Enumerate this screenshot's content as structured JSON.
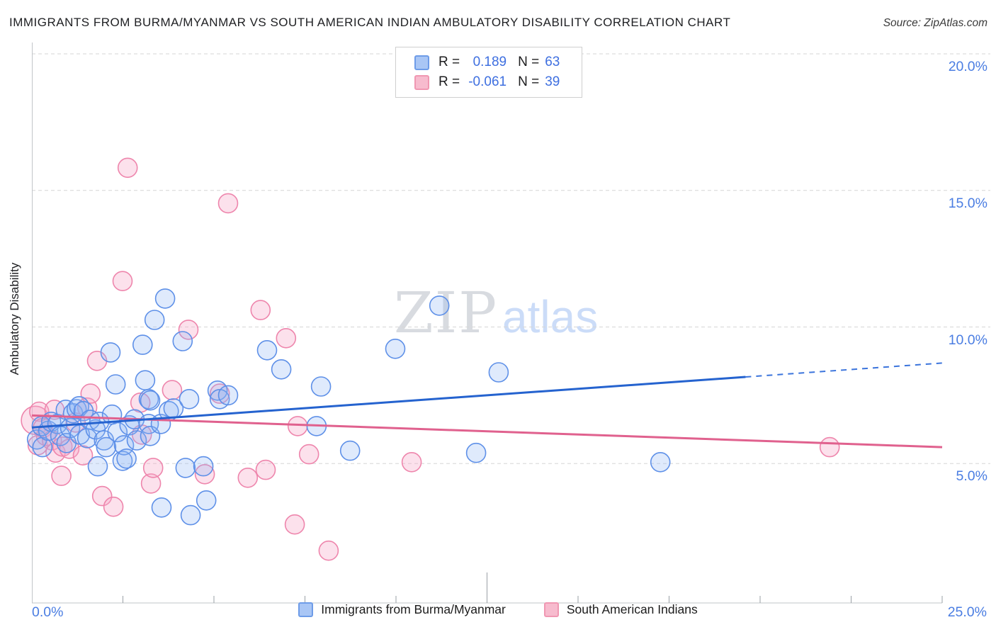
{
  "title": "IMMIGRANTS FROM BURMA/MYANMAR VS SOUTH AMERICAN INDIAN AMBULATORY DISABILITY CORRELATION CHART",
  "source": "Source: ZipAtlas.com",
  "watermark": {
    "zip": "ZIP",
    "atlas": "atlas"
  },
  "stats_legend": {
    "rows": [
      {
        "series": "Immigrants from Burma/Myanmar",
        "r_label": "R =",
        "r_value": "0.189",
        "n_label": "N =",
        "n_value": "63"
      },
      {
        "series": "South American Indians",
        "r_label": "R =",
        "r_value": "-0.061",
        "n_label": "N =",
        "n_value": "39"
      }
    ]
  },
  "axes": {
    "y_label": "Ambulatory Disability",
    "y_ticks": [
      {
        "value": 20,
        "label": "20.0%"
      },
      {
        "value": 15,
        "label": "15.0%"
      },
      {
        "value": 10,
        "label": "10.0%"
      },
      {
        "value": 5,
        "label": "5.0%"
      }
    ],
    "x_min_label": "0.0%",
    "x_max_label": "25.0%",
    "x_range": [
      0,
      25
    ],
    "y_range": [
      0,
      20.8
    ],
    "x_tick_step": 2.5,
    "x_major_tick": 12.5,
    "grid": "horizontal-dashed"
  },
  "series_legend": [
    {
      "label": "Immigrants from Burma/Myanmar",
      "color_key": "blue"
    },
    {
      "label": "South American Indians",
      "color_key": "pink"
    }
  ],
  "colors": {
    "axis_label_blue": "#4a7de2",
    "blue_point_stroke": "#5e90e8",
    "blue_point_fill": "rgba(140,180,245,0.28)",
    "pink_point_stroke": "#ee85ac",
    "pink_point_fill": "rgba(247,170,200,0.35)",
    "blue_trend": "#2563cf",
    "blue_trend_dashed": "#3b74dc",
    "pink_trend": "#e0618e",
    "gridline": "#d6d6d6",
    "axis_line": "#c2c5c9",
    "tick": "#9aa0a6"
  },
  "chart_data": {
    "type": "scatter",
    "title": "Immigrants from Burma/Myanmar vs South American Indian Ambulatory Disability",
    "x_unit": "percent immigrants/population",
    "y_unit": "percent ambulatory disability",
    "xlim": [
      0,
      25
    ],
    "ylim": [
      0,
      20.8
    ],
    "series": [
      {
        "name": "Immigrants from Burma/Myanmar",
        "R": 0.189,
        "N": 63,
        "points": [
          [
            0.14,
            5.88
          ],
          [
            0.27,
            6.37
          ],
          [
            0.29,
            5.6
          ],
          [
            0.45,
            6.2
          ],
          [
            0.53,
            6.53
          ],
          [
            0.7,
            6.45
          ],
          [
            0.78,
            6.01
          ],
          [
            0.93,
            6.97
          ],
          [
            0.95,
            5.75
          ],
          [
            1.05,
            6.3
          ],
          [
            1.13,
            6.84
          ],
          [
            1.23,
            6.99
          ],
          [
            1.3,
            7.1
          ],
          [
            1.32,
            6.06
          ],
          [
            1.42,
            6.92
          ],
          [
            1.52,
            5.93
          ],
          [
            1.6,
            6.6
          ],
          [
            1.75,
            6.25
          ],
          [
            1.81,
            4.9
          ],
          [
            1.85,
            6.53
          ],
          [
            1.98,
            5.85
          ],
          [
            2.04,
            5.6
          ],
          [
            2.16,
            9.07
          ],
          [
            2.2,
            6.79
          ],
          [
            2.3,
            7.9
          ],
          [
            2.35,
            6.15
          ],
          [
            2.49,
            5.1
          ],
          [
            2.53,
            5.67
          ],
          [
            2.6,
            5.18
          ],
          [
            2.68,
            6.4
          ],
          [
            2.82,
            6.62
          ],
          [
            2.88,
            5.85
          ],
          [
            3.04,
            9.35
          ],
          [
            3.11,
            8.05
          ],
          [
            3.21,
            7.36
          ],
          [
            3.21,
            6.45
          ],
          [
            3.25,
            7.31
          ],
          [
            3.25,
            6.01
          ],
          [
            3.37,
            10.26
          ],
          [
            3.54,
            6.45
          ],
          [
            3.56,
            3.39
          ],
          [
            3.66,
            11.04
          ],
          [
            3.76,
            6.92
          ],
          [
            3.89,
            7.02
          ],
          [
            4.14,
            9.48
          ],
          [
            4.22,
            4.84
          ],
          [
            4.32,
            7.36
          ],
          [
            4.36,
            3.11
          ],
          [
            4.71,
            4.9
          ],
          [
            4.79,
            3.65
          ],
          [
            5.1,
            7.67
          ],
          [
            5.16,
            7.36
          ],
          [
            5.39,
            7.5
          ],
          [
            6.46,
            9.15
          ],
          [
            6.85,
            8.45
          ],
          [
            7.82,
            6.37
          ],
          [
            7.94,
            7.82
          ],
          [
            8.74,
            5.47
          ],
          [
            9.98,
            9.2
          ],
          [
            11.19,
            10.78
          ],
          [
            12.2,
            5.39
          ],
          [
            12.82,
            8.34
          ],
          [
            17.26,
            5.05
          ]
        ]
      },
      {
        "name": "South American Indians",
        "R": -0.061,
        "N": 39,
        "points": [
          [
            0.1,
            6.58,
            20
          ],
          [
            0.16,
            5.67
          ],
          [
            0.2,
            6.9
          ],
          [
            0.3,
            6.3
          ],
          [
            0.39,
            6.01
          ],
          [
            0.55,
            5.85
          ],
          [
            0.62,
            6.97
          ],
          [
            0.65,
            5.4
          ],
          [
            0.81,
            4.55
          ],
          [
            0.84,
            5.62
          ],
          [
            1.03,
            5.54
          ],
          [
            1.2,
            6.5
          ],
          [
            1.4,
            5.3
          ],
          [
            1.52,
            7.05
          ],
          [
            1.61,
            7.56
          ],
          [
            1.79,
            8.76
          ],
          [
            1.93,
            3.81
          ],
          [
            2.24,
            3.42
          ],
          [
            2.49,
            11.68
          ],
          [
            2.63,
            15.83
          ],
          [
            2.98,
            7.23
          ],
          [
            3.02,
            6.06
          ],
          [
            3.27,
            4.27
          ],
          [
            3.33,
            4.84
          ],
          [
            3.85,
            7.69
          ],
          [
            4.3,
            9.9
          ],
          [
            4.75,
            4.61
          ],
          [
            5.16,
            7.56
          ],
          [
            5.39,
            14.53
          ],
          [
            5.93,
            4.48
          ],
          [
            6.28,
            10.62
          ],
          [
            6.42,
            4.77
          ],
          [
            6.98,
            9.59
          ],
          [
            7.22,
            2.77
          ],
          [
            7.3,
            6.37
          ],
          [
            7.61,
            5.34
          ],
          [
            8.15,
            1.81
          ],
          [
            10.43,
            5.05
          ],
          [
            21.91,
            5.6
          ]
        ]
      }
    ],
    "trend_lines": [
      {
        "series": "Immigrants from Burma/Myanmar",
        "x": [
          0,
          25
        ],
        "y": [
          6.32,
          8.68
        ],
        "solid_until_x": 19.6,
        "style": "solid-then-dashed"
      },
      {
        "series": "South American Indians",
        "x": [
          0,
          25
        ],
        "y": [
          6.76,
          5.6
        ],
        "style": "solid"
      }
    ],
    "legend_position": "bottom-center",
    "stats_box_position": "top-center"
  }
}
